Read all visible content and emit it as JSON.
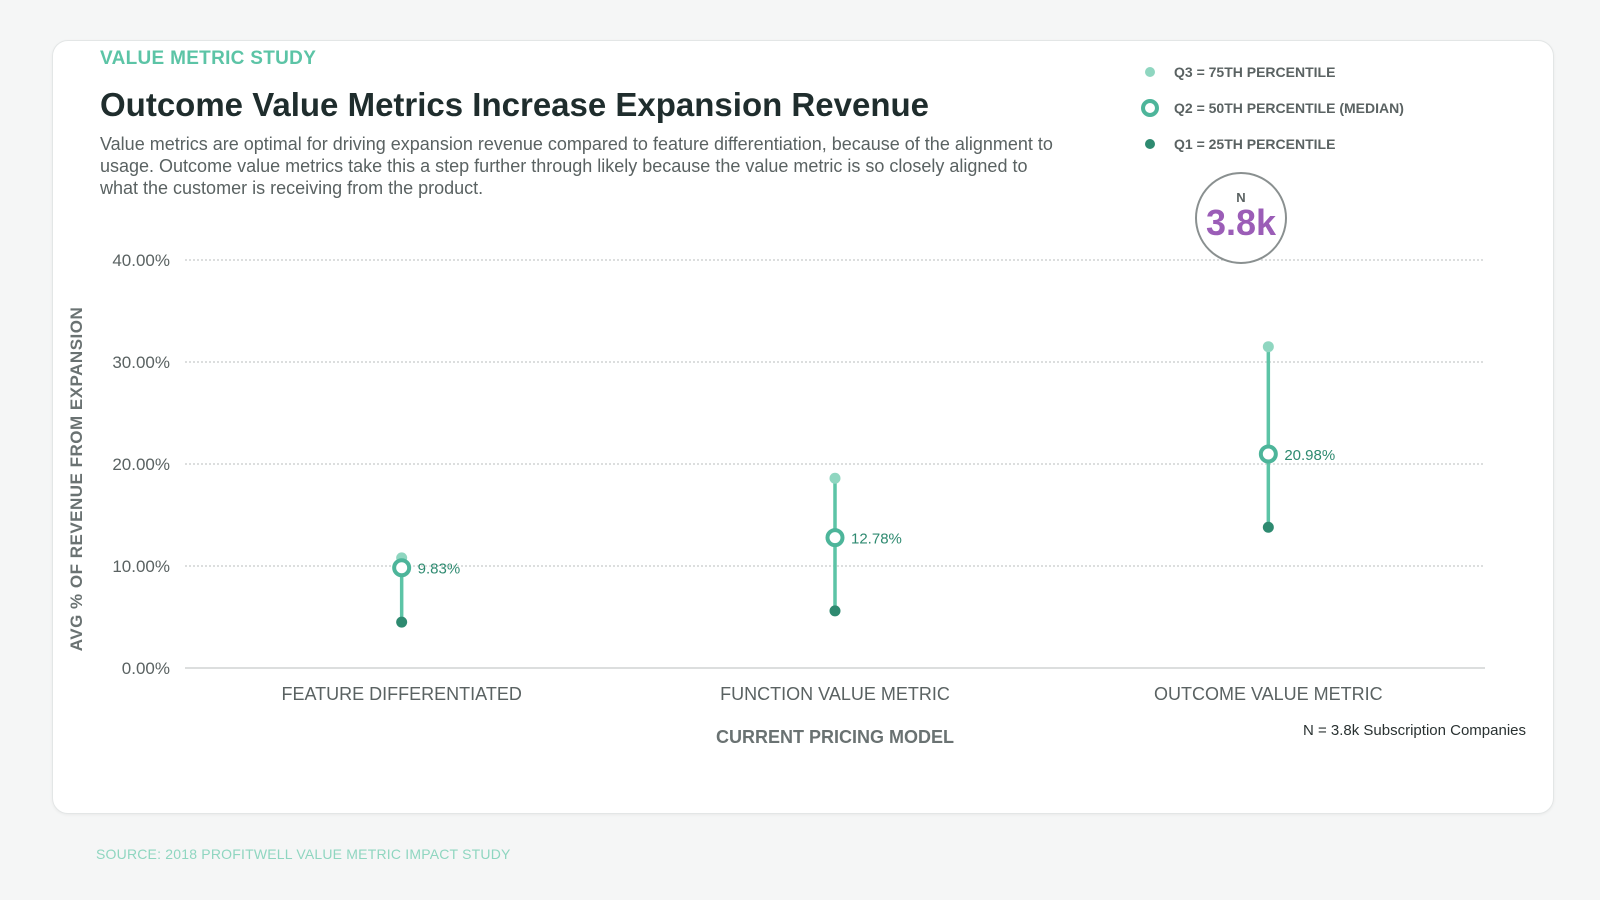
{
  "header": {
    "eyebrow": "VALUE METRIC STUDY",
    "title": "Outcome Value Metrics Increase Expansion Revenue",
    "subtitle": "Value metrics are optimal for driving expansion revenue compared to feature differentiation, because of the alignment to usage. Outcome value metrics take this a step further through likely because the value metric is so closely aligned to what the customer is receiving from the product."
  },
  "legend": {
    "items": [
      {
        "label": "Q3 = 75TH PERCENTILE",
        "icon": "light-dot-icon",
        "color": "#8fd6c0"
      },
      {
        "label": "Q2 = 50TH PERCENTILE (MEDIAN)",
        "icon": "ring-icon",
        "color": "#4db59a"
      },
      {
        "label": "Q1 = 25TH PERCENTILE",
        "icon": "dark-dot-icon",
        "color": "#2e8a70"
      }
    ]
  },
  "badge": {
    "letter": "N",
    "value": "3.8k"
  },
  "footnote": "N = 3.8k Subscription Companies",
  "source": "SOURCE: 2018 PROFITWELL VALUE METRIC IMPACT STUDY",
  "colors": {
    "q3": "#8fd6c0",
    "q2": "#4db59a",
    "q1": "#2e8a70",
    "line": "#5cc4a6",
    "accent": "#9b5db7"
  },
  "chart_data": {
    "type": "dot-range",
    "categories": [
      "FEATURE DIFFERENTIATED",
      "FUNCTION VALUE METRIC",
      "OUTCOME VALUE METRIC"
    ],
    "series": [
      {
        "name": "Q3 = 75TH PERCENTILE",
        "values": [
          10.8,
          18.6,
          31.5
        ]
      },
      {
        "name": "Q2 = 50TH PERCENTILE (MEDIAN)",
        "values": [
          9.83,
          12.78,
          20.98
        ]
      },
      {
        "name": "Q1 = 25TH PERCENTILE",
        "values": [
          4.5,
          5.6,
          13.8
        ]
      }
    ],
    "median_labels": [
      "9.83%",
      "12.78%",
      "20.98%"
    ],
    "xlabel": "CURRENT PRICING MODEL",
    "ylabel": "AVG % OF REVENUE FROM EXPANSION",
    "yticks": [
      "0.00%",
      "10.00%",
      "20.00%",
      "30.00%",
      "40.00%"
    ],
    "ylim": [
      0,
      40
    ],
    "grid": true
  }
}
